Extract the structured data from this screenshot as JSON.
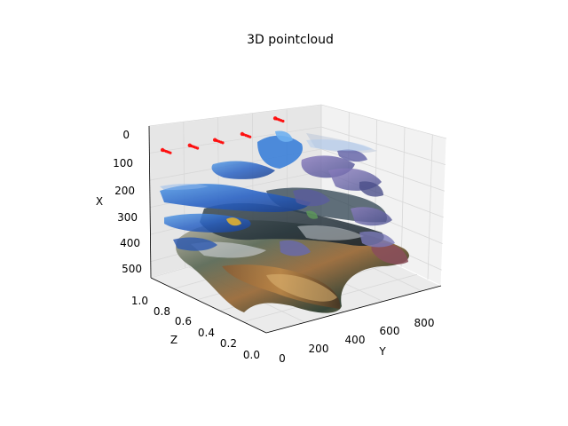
{
  "chart_data": {
    "type": "scatter",
    "title": "3D pointcloud",
    "projection": "3d",
    "grid": true,
    "legend": "none",
    "colors": {
      "pane_left": "#e6e6e6",
      "pane_back": "#f2f2f2",
      "pane_floor": "#ebebeb",
      "grid": "#d4d4d4",
      "marker": "#ff0000"
    },
    "axes": {
      "x": {
        "label": "X",
        "ticks": [
          "0",
          "100",
          "200",
          "300",
          "400",
          "500"
        ],
        "lim": [
          0,
          560
        ]
      },
      "y": {
        "label": "Y",
        "ticks": [
          "0",
          "200",
          "400",
          "600",
          "800"
        ],
        "lim": [
          0,
          900
        ]
      },
      "z": {
        "label": "Z",
        "ticks": [
          "0.0",
          "0.2",
          "0.4",
          "0.6",
          "0.8",
          "1.0"
        ],
        "lim": [
          0,
          1
        ]
      }
    },
    "series": [
      {
        "color": "#ff0000",
        "points": [
          {
            "x": 100,
            "y": 60,
            "z": 1.0
          },
          {
            "x": 110,
            "y": 200,
            "z": 1.0
          },
          {
            "x": 115,
            "y": 330,
            "z": 1.0
          },
          {
            "x": 120,
            "y": 470,
            "z": 1.0
          },
          {
            "x": 95,
            "y": 640,
            "z": 1.0
          }
        ]
      }
    ],
    "image_overlay": "RGB point cloud rendered as colored image slices"
  }
}
